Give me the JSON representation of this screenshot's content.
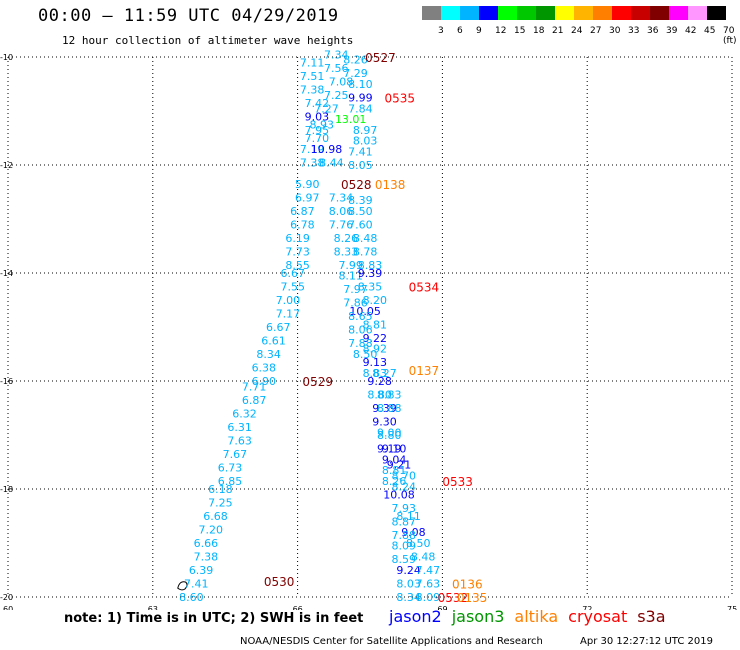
{
  "title": "00:00 – 11:59 UTC 04/29/2019",
  "subtitle": "12 hour collection of altimeter wave heights",
  "colorbar": {
    "colors": [
      "#808080",
      "#00ffff",
      "#00b4ff",
      "#0000ff",
      "#00ff00",
      "#00c800",
      "#009600",
      "#ffff00",
      "#ffb400",
      "#ff8000",
      "#ff0000",
      "#c80000",
      "#800000",
      "#ff00ff",
      "#ff96ff",
      "#000000"
    ],
    "labels": [
      "3",
      "6",
      "9",
      "12",
      "15",
      "18",
      "21",
      "24",
      "27",
      "30",
      "33",
      "36",
      "39",
      "42",
      "45",
      "70 (ft)"
    ]
  },
  "map": {
    "lon_ticks": [
      "60",
      "63",
      "66",
      "69",
      "72",
      "75"
    ],
    "lat_ticks": [
      "-10",
      "-12",
      "-14",
      "-16",
      "-18",
      "-20"
    ]
  },
  "chart_data": {
    "type": "scatter",
    "lon_range": [
      60,
      75
    ],
    "lat_range": [
      -20,
      -10
    ],
    "pass_labels": [
      {
        "text": "0527",
        "lon": 67.4,
        "lat": -10.0,
        "color": "#800000"
      },
      {
        "text": "0535",
        "lon": 67.8,
        "lat": -10.75,
        "color": "#ff0000"
      },
      {
        "text": "0528",
        "lon": 66.9,
        "lat": -12.35,
        "color": "#800000"
      },
      {
        "text": "0138",
        "lon": 67.6,
        "lat": -12.35,
        "color": "#ff8000"
      },
      {
        "text": "0534",
        "lon": 68.3,
        "lat": -14.25,
        "color": "#ff0000"
      },
      {
        "text": "0529",
        "lon": 66.1,
        "lat": -16.0,
        "color": "#800000"
      },
      {
        "text": "0137",
        "lon": 68.3,
        "lat": -15.8,
        "color": "#ff8000"
      },
      {
        "text": "0533",
        "lon": 69.0,
        "lat": -17.85,
        "color": "#ff0000"
      },
      {
        "text": "0530",
        "lon": 65.3,
        "lat": -19.7,
        "color": "#800000"
      },
      {
        "text": "0136",
        "lon": 69.2,
        "lat": -19.75,
        "color": "#ff8000"
      },
      {
        "text": "0532",
        "lon": 68.9,
        "lat": -20.0,
        "color": "#ff0000"
      },
      {
        "text": "0135",
        "lon": 69.3,
        "lat": -20.0,
        "color": "#ff8000"
      }
    ],
    "points": [
      {
        "v": "7.34",
        "lon": 66.8,
        "lat": -9.95,
        "color": "#00b4ff"
      },
      {
        "v": "8.26",
        "lon": 67.2,
        "lat": -10.05,
        "color": "#00b4ff"
      },
      {
        "v": "7.11",
        "lon": 66.3,
        "lat": -10.1,
        "color": "#00b4ff"
      },
      {
        "v": "7.56",
        "lon": 66.8,
        "lat": -10.2,
        "color": "#00b4ff"
      },
      {
        "v": "7.29",
        "lon": 67.2,
        "lat": -10.3,
        "color": "#00b4ff"
      },
      {
        "v": "7.51",
        "lon": 66.3,
        "lat": -10.35,
        "color": "#00b4ff"
      },
      {
        "v": "7.08",
        "lon": 66.9,
        "lat": -10.45,
        "color": "#00b4ff"
      },
      {
        "v": "8.10",
        "lon": 67.3,
        "lat": -10.5,
        "color": "#00b4ff"
      },
      {
        "v": "7.38",
        "lon": 66.3,
        "lat": -10.6,
        "color": "#00b4ff"
      },
      {
        "v": "7.25",
        "lon": 66.8,
        "lat": -10.7,
        "color": "#00b4ff"
      },
      {
        "v": "9.99",
        "lon": 67.3,
        "lat": -10.75,
        "color": "#0000ff"
      },
      {
        "v": "7.42",
        "lon": 66.4,
        "lat": -10.85,
        "color": "#00b4ff"
      },
      {
        "v": "7.27",
        "lon": 66.6,
        "lat": -10.95,
        "color": "#00b4ff"
      },
      {
        "v": "7.84",
        "lon": 67.3,
        "lat": -10.95,
        "color": "#00b4ff"
      },
      {
        "v": "9.03",
        "lon": 66.4,
        "lat": -11.1,
        "color": "#0000ff"
      },
      {
        "v": "13.01",
        "lon": 67.1,
        "lat": -11.15,
        "color": "#00ff00"
      },
      {
        "v": "8.93",
        "lon": 66.5,
        "lat": -11.25,
        "color": "#00b4ff"
      },
      {
        "v": "7.95",
        "lon": 66.4,
        "lat": -11.35,
        "color": "#00b4ff"
      },
      {
        "v": "8.97",
        "lon": 67.4,
        "lat": -11.35,
        "color": "#00b4ff"
      },
      {
        "v": "7.70",
        "lon": 66.4,
        "lat": -11.5,
        "color": "#00b4ff"
      },
      {
        "v": "8.03",
        "lon": 67.4,
        "lat": -11.55,
        "color": "#00b4ff"
      },
      {
        "v": "7.19",
        "lon": 66.3,
        "lat": -11.7,
        "color": "#00b4ff"
      },
      {
        "v": "10.98",
        "lon": 66.6,
        "lat": -11.7,
        "color": "#0000ff"
      },
      {
        "v": "7.41",
        "lon": 67.3,
        "lat": -11.75,
        "color": "#00b4ff"
      },
      {
        "v": "7.38",
        "lon": 66.3,
        "lat": -11.95,
        "color": "#00b4ff"
      },
      {
        "v": "8.44",
        "lon": 66.7,
        "lat": -11.95,
        "color": "#00b4ff"
      },
      {
        "v": "8.05",
        "lon": 67.3,
        "lat": -12.0,
        "color": "#00b4ff"
      },
      {
        "v": "5.90",
        "lon": 66.2,
        "lat": -12.35,
        "color": "#00b4ff"
      },
      {
        "v": "6.97",
        "lon": 66.2,
        "lat": -12.6,
        "color": "#00b4ff"
      },
      {
        "v": "7.34",
        "lon": 66.9,
        "lat": -12.6,
        "color": "#00b4ff"
      },
      {
        "v": "8.39",
        "lon": 67.3,
        "lat": -12.65,
        "color": "#00b4ff"
      },
      {
        "v": "6.87",
        "lon": 66.1,
        "lat": -12.85,
        "color": "#00b4ff"
      },
      {
        "v": "8.06",
        "lon": 66.9,
        "lat": -12.85,
        "color": "#00b4ff"
      },
      {
        "v": "8.50",
        "lon": 67.3,
        "lat": -12.85,
        "color": "#00b4ff"
      },
      {
        "v": "6.78",
        "lon": 66.1,
        "lat": -13.1,
        "color": "#00b4ff"
      },
      {
        "v": "7.76",
        "lon": 66.9,
        "lat": -13.1,
        "color": "#00b4ff"
      },
      {
        "v": "7.60",
        "lon": 67.3,
        "lat": -13.1,
        "color": "#00b4ff"
      },
      {
        "v": "6.19",
        "lon": 66.0,
        "lat": -13.35,
        "color": "#00b4ff"
      },
      {
        "v": "8.26",
        "lon": 67.0,
        "lat": -13.35,
        "color": "#00b4ff"
      },
      {
        "v": "8.48",
        "lon": 67.4,
        "lat": -13.35,
        "color": "#00b4ff"
      },
      {
        "v": "7.73",
        "lon": 66.0,
        "lat": -13.6,
        "color": "#00b4ff"
      },
      {
        "v": "8.33",
        "lon": 67.0,
        "lat": -13.6,
        "color": "#00b4ff"
      },
      {
        "v": "8.78",
        "lon": 67.4,
        "lat": -13.6,
        "color": "#00b4ff"
      },
      {
        "v": "8.55",
        "lon": 66.0,
        "lat": -13.85,
        "color": "#00b4ff"
      },
      {
        "v": "7.99",
        "lon": 67.1,
        "lat": -13.85,
        "color": "#00b4ff"
      },
      {
        "v": "8.83",
        "lon": 67.5,
        "lat": -13.85,
        "color": "#00b4ff"
      },
      {
        "v": "6.67",
        "lon": 65.9,
        "lat": -14.0,
        "color": "#00b4ff"
      },
      {
        "v": "8.11",
        "lon": 67.1,
        "lat": -14.05,
        "color": "#00b4ff"
      },
      {
        "v": "9.39",
        "lon": 67.5,
        "lat": -14.0,
        "color": "#0000ff"
      },
      {
        "v": "7.55",
        "lon": 65.9,
        "lat": -14.25,
        "color": "#00b4ff"
      },
      {
        "v": "7.97",
        "lon": 67.2,
        "lat": -14.3,
        "color": "#00b4ff"
      },
      {
        "v": "8.35",
        "lon": 67.5,
        "lat": -14.25,
        "color": "#00b4ff"
      },
      {
        "v": "7.00",
        "lon": 65.8,
        "lat": -14.5,
        "color": "#00b4ff"
      },
      {
        "v": "7.86",
        "lon": 67.2,
        "lat": -14.55,
        "color": "#00b4ff"
      },
      {
        "v": "8.20",
        "lon": 67.6,
        "lat": -14.5,
        "color": "#00b4ff"
      },
      {
        "v": "7.17",
        "lon": 65.8,
        "lat": -14.75,
        "color": "#00b4ff"
      },
      {
        "v": "10.05",
        "lon": 67.4,
        "lat": -14.7,
        "color": "#0000ff"
      },
      {
        "v": "8.65",
        "lon": 67.3,
        "lat": -14.8,
        "color": "#00b4ff"
      },
      {
        "v": "6.67",
        "lon": 65.6,
        "lat": -15.0,
        "color": "#00b4ff"
      },
      {
        "v": "8.81",
        "lon": 67.6,
        "lat": -14.95,
        "color": "#00b4ff"
      },
      {
        "v": "8.06",
        "lon": 67.3,
        "lat": -15.05,
        "color": "#00b4ff"
      },
      {
        "v": "6.61",
        "lon": 65.5,
        "lat": -15.25,
        "color": "#00b4ff"
      },
      {
        "v": "9.22",
        "lon": 67.6,
        "lat": -15.2,
        "color": "#0000ff"
      },
      {
        "v": "7.88",
        "lon": 67.3,
        "lat": -15.3,
        "color": "#00b4ff"
      },
      {
        "v": "8.34",
        "lon": 65.4,
        "lat": -15.5,
        "color": "#00b4ff"
      },
      {
        "v": "8.92",
        "lon": 67.6,
        "lat": -15.4,
        "color": "#00b4ff"
      },
      {
        "v": "8.50",
        "lon": 67.4,
        "lat": -15.5,
        "color": "#00b4ff"
      },
      {
        "v": "6.38",
        "lon": 65.3,
        "lat": -15.75,
        "color": "#00b4ff"
      },
      {
        "v": "9.13",
        "lon": 67.6,
        "lat": -15.65,
        "color": "#0000ff"
      },
      {
        "v": "8.83",
        "lon": 67.6,
        "lat": -15.85,
        "color": "#00b4ff"
      },
      {
        "v": "8.27",
        "lon": 67.8,
        "lat": -15.85,
        "color": "#00b4ff"
      },
      {
        "v": "6.90",
        "lon": 65.3,
        "lat": -16.0,
        "color": "#00b4ff"
      },
      {
        "v": "9.28",
        "lon": 67.7,
        "lat": -16.0,
        "color": "#0000ff"
      },
      {
        "v": "7.71",
        "lon": 65.1,
        "lat": -16.1,
        "color": "#00b4ff"
      },
      {
        "v": "8.80",
        "lon": 67.7,
        "lat": -16.25,
        "color": "#00b4ff"
      },
      {
        "v": "8.83",
        "lon": 67.9,
        "lat": -16.25,
        "color": "#00b4ff"
      },
      {
        "v": "6.87",
        "lon": 65.1,
        "lat": -16.35,
        "color": "#00b4ff"
      },
      {
        "v": "9.39",
        "lon": 67.8,
        "lat": -16.5,
        "color": "#0000ff"
      },
      {
        "v": "8.88",
        "lon": 67.9,
        "lat": -16.5,
        "color": "#00b4ff"
      },
      {
        "v": "6.32",
        "lon": 64.9,
        "lat": -16.6,
        "color": "#00b4ff"
      },
      {
        "v": "9.30",
        "lon": 67.8,
        "lat": -16.75,
        "color": "#0000ff"
      },
      {
        "v": "6.31",
        "lon": 64.8,
        "lat": -16.85,
        "color": "#00b4ff"
      },
      {
        "v": "8.80",
        "lon": 67.9,
        "lat": -17.0,
        "color": "#00b4ff"
      },
      {
        "v": "9.00",
        "lon": 67.9,
        "lat": -16.95,
        "color": "#00b4ff"
      },
      {
        "v": "7.63",
        "lon": 64.8,
        "lat": -17.1,
        "color": "#00b4ff"
      },
      {
        "v": "9.10",
        "lon": 68.0,
        "lat": -17.25,
        "color": "#0000ff"
      },
      {
        "v": "9.19",
        "lon": 67.9,
        "lat": -17.25,
        "color": "#0000ff"
      },
      {
        "v": "7.67",
        "lon": 64.7,
        "lat": -17.35,
        "color": "#00b4ff"
      },
      {
        "v": "9.04",
        "lon": 68.0,
        "lat": -17.45,
        "color": "#0000ff"
      },
      {
        "v": "9.21",
        "lon": 68.1,
        "lat": -17.55,
        "color": "#0000ff"
      },
      {
        "v": "6.73",
        "lon": 64.6,
        "lat": -17.6,
        "color": "#00b4ff"
      },
      {
        "v": "8.81",
        "lon": 68.0,
        "lat": -17.65,
        "color": "#00b4ff"
      },
      {
        "v": "8.70",
        "lon": 68.2,
        "lat": -17.75,
        "color": "#00b4ff"
      },
      {
        "v": "8.26",
        "lon": 68.0,
        "lat": -17.85,
        "color": "#00b4ff"
      },
      {
        "v": "6.85",
        "lon": 64.6,
        "lat": -17.85,
        "color": "#00b4ff"
      },
      {
        "v": "8.24",
        "lon": 68.2,
        "lat": -17.95,
        "color": "#00b4ff"
      },
      {
        "v": "6.18",
        "lon": 64.4,
        "lat": -18.0,
        "color": "#00b4ff"
      },
      {
        "v": "10.08",
        "lon": 68.1,
        "lat": -18.1,
        "color": "#0000ff"
      },
      {
        "v": "7.25",
        "lon": 64.4,
        "lat": -18.25,
        "color": "#00b4ff"
      },
      {
        "v": "7.93",
        "lon": 68.2,
        "lat": -18.35,
        "color": "#00b4ff"
      },
      {
        "v": "6.68",
        "lon": 64.3,
        "lat": -18.5,
        "color": "#00b4ff"
      },
      {
        "v": "8.11",
        "lon": 68.3,
        "lat": -18.5,
        "color": "#00b4ff"
      },
      {
        "v": "8.87",
        "lon": 68.2,
        "lat": -18.6,
        "color": "#00b4ff"
      },
      {
        "v": "7.20",
        "lon": 64.2,
        "lat": -18.75,
        "color": "#00b4ff"
      },
      {
        "v": "9.08",
        "lon": 68.4,
        "lat": -18.8,
        "color": "#0000ff"
      },
      {
        "v": "7.88",
        "lon": 68.2,
        "lat": -18.85,
        "color": "#00b4ff"
      },
      {
        "v": "6.66",
        "lon": 64.1,
        "lat": -19.0,
        "color": "#00b4ff"
      },
      {
        "v": "8.50",
        "lon": 68.5,
        "lat": -19.0,
        "color": "#00b4ff"
      },
      {
        "v": "8.09",
        "lon": 68.2,
        "lat": -19.05,
        "color": "#00b4ff"
      },
      {
        "v": "7.38",
        "lon": 64.1,
        "lat": -19.25,
        "color": "#00b4ff"
      },
      {
        "v": "8.48",
        "lon": 68.6,
        "lat": -19.25,
        "color": "#00b4ff"
      },
      {
        "v": "8.59",
        "lon": 68.2,
        "lat": -19.3,
        "color": "#00b4ff"
      },
      {
        "v": "6.39",
        "lon": 64.0,
        "lat": -19.5,
        "color": "#00b4ff"
      },
      {
        "v": "9.24",
        "lon": 68.3,
        "lat": -19.5,
        "color": "#0000ff"
      },
      {
        "v": "7.47",
        "lon": 68.7,
        "lat": -19.5,
        "color": "#00b4ff"
      },
      {
        "v": "7.41",
        "lon": 63.9,
        "lat": -19.75,
        "color": "#00b4ff"
      },
      {
        "v": "8.03",
        "lon": 68.3,
        "lat": -19.75,
        "color": "#00b4ff"
      },
      {
        "v": "7.63",
        "lon": 68.7,
        "lat": -19.75,
        "color": "#00b4ff"
      },
      {
        "v": "8.60",
        "lon": 63.8,
        "lat": -20.0,
        "color": "#00b4ff"
      },
      {
        "v": "8.34",
        "lon": 68.3,
        "lat": -20.0,
        "color": "#00b4ff"
      },
      {
        "v": "8.09",
        "lon": 68.7,
        "lat": -20.0,
        "color": "#00b4ff"
      }
    ]
  },
  "note": "note:  1) Time is in UTC;  2) SWH is in feet",
  "legend": [
    {
      "label": "jason2",
      "color": "#0000ff"
    },
    {
      "label": "jason3",
      "color": "#009600"
    },
    {
      "label": "altika",
      "color": "#ff8000"
    },
    {
      "label": "cryosat",
      "color": "#ff0000"
    },
    {
      "label": "s3a",
      "color": "#800000"
    }
  ],
  "footer_left": "NOAA/NESDIS Center for Satellite Applications and Research",
  "footer_right": "Apr 30 12:27:12 UTC 2019"
}
